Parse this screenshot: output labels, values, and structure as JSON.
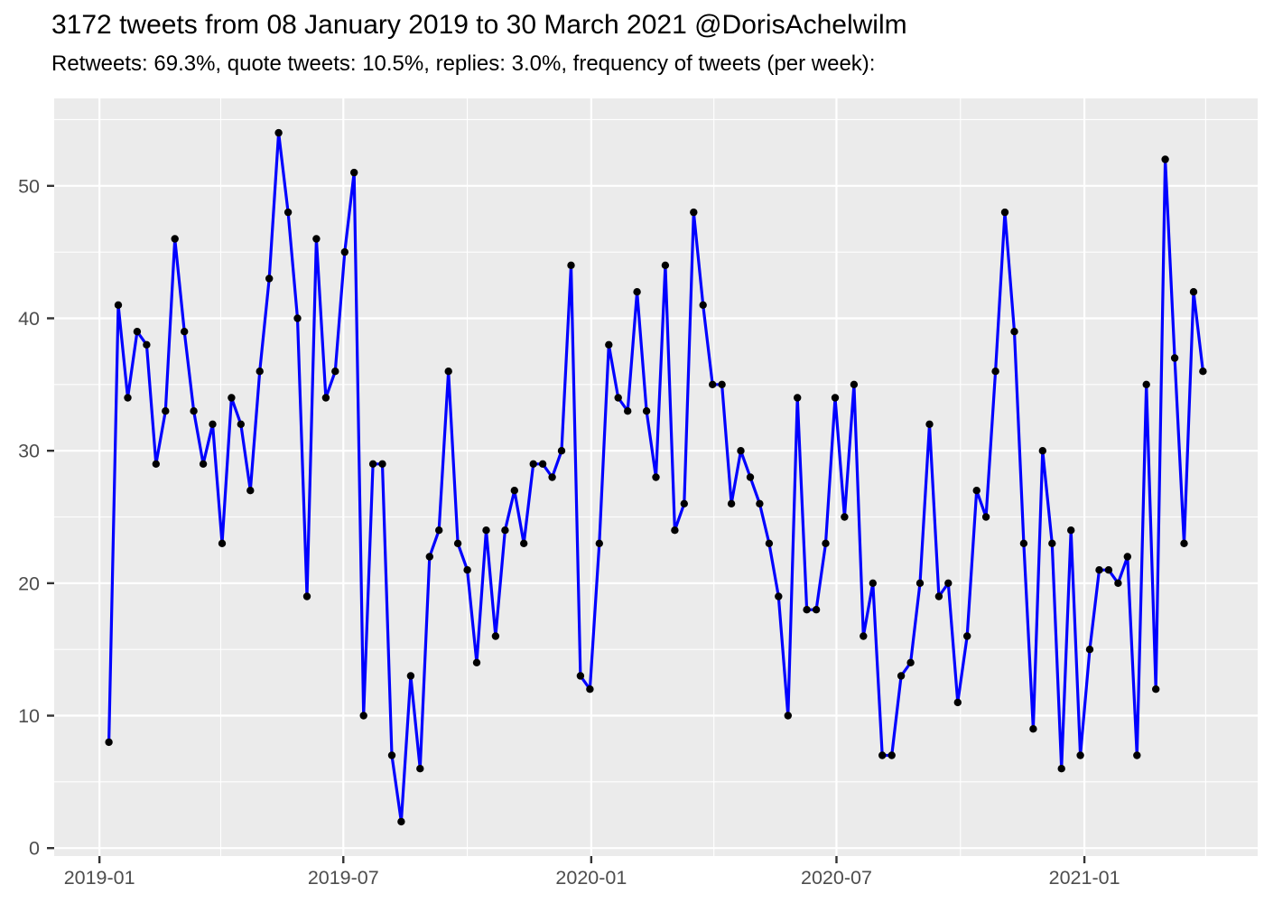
{
  "title": "3172 tweets from 08 January 2019 to 30 March 2021 @DorisAchelwilm",
  "subtitle": "Retweets: 69.3%, quote tweets: 10.5%, replies: 3.0%, frequency of tweets (per week):",
  "chart_data": {
    "type": "line",
    "series_name": "tweets per week",
    "start_date": "2019-01-08",
    "end_date": "2021-03-30",
    "interval_days": 7,
    "values": [
      8,
      41,
      34,
      39,
      38,
      29,
      33,
      46,
      39,
      33,
      29,
      32,
      23,
      34,
      32,
      27,
      36,
      43,
      54,
      48,
      40,
      19,
      46,
      34,
      36,
      45,
      51,
      10,
      29,
      29,
      7,
      2,
      13,
      6,
      22,
      24,
      36,
      23,
      21,
      14,
      24,
      16,
      24,
      27,
      23,
      29,
      29,
      28,
      30,
      44,
      13,
      12,
      23,
      38,
      34,
      33,
      42,
      33,
      28,
      44,
      24,
      26,
      48,
      41,
      35,
      35,
      26,
      30,
      28,
      26,
      23,
      19,
      10,
      34,
      18,
      18,
      23,
      34,
      25,
      35,
      16,
      20,
      7,
      7,
      13,
      14,
      20,
      32,
      19,
      20,
      11,
      16,
      27,
      25,
      36,
      48,
      39,
      23,
      9,
      30,
      23,
      6,
      24,
      7,
      15,
      21,
      21,
      20,
      22,
      7,
      35,
      12,
      52,
      37,
      23,
      42,
      36
    ],
    "total_tweets": 3172,
    "x_ticks": [
      {
        "date": "2019-01-01",
        "label": "2019-01"
      },
      {
        "date": "2019-07-01",
        "label": "2019-07"
      },
      {
        "date": "2020-01-01",
        "label": "2020-01"
      },
      {
        "date": "2020-07-01",
        "label": "2020-07"
      },
      {
        "date": "2021-01-01",
        "label": "2021-01"
      }
    ],
    "x_minor_dates": [
      "2019-04-01",
      "2019-10-01",
      "2020-04-01",
      "2020-10-01",
      "2021-04-01"
    ],
    "y_ticks": [
      0,
      10,
      20,
      30,
      40,
      50
    ],
    "y_minor_ticks": [
      5,
      15,
      25,
      35,
      45,
      55
    ],
    "ylim": [
      -0.6,
      56.6
    ],
    "x_expansion": 0.05,
    "grid": "major and minor, white on gray panel",
    "legend": "none",
    "colors": {
      "line": "#0000FF",
      "point": "#000000",
      "panel_background": "#EBEBEB",
      "grid": "#FFFFFF",
      "axis_text": "#4D4D4D",
      "tick_mark": "#333333",
      "title_text": "#000000",
      "outer_background": "#FFFFFF"
    }
  }
}
